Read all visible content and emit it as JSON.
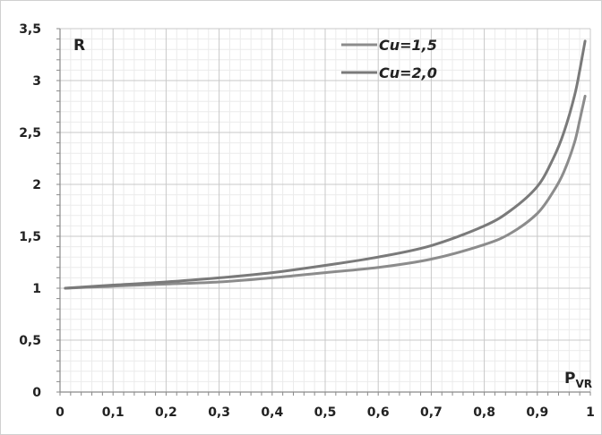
{
  "chart_data": {
    "type": "line",
    "ylabel": "R",
    "xlabel": {
      "main": "P",
      "sub": "VR"
    },
    "xlim": [
      0,
      1
    ],
    "ylim": [
      0,
      3.5
    ],
    "xticks": [
      {
        "v": 0,
        "label": "0"
      },
      {
        "v": 0.1,
        "label": "0,1"
      },
      {
        "v": 0.2,
        "label": "0,2"
      },
      {
        "v": 0.3,
        "label": "0,3"
      },
      {
        "v": 0.4,
        "label": "0,4"
      },
      {
        "v": 0.5,
        "label": "0,5"
      },
      {
        "v": 0.6,
        "label": "0,6"
      },
      {
        "v": 0.7,
        "label": "0,7"
      },
      {
        "v": 0.8,
        "label": "0,8"
      },
      {
        "v": 0.9,
        "label": "0,9"
      },
      {
        "v": 1,
        "label": "1"
      }
    ],
    "yticks": [
      {
        "v": 0,
        "label": "0"
      },
      {
        "v": 0.5,
        "label": "0,5"
      },
      {
        "v": 1,
        "label": "1"
      },
      {
        "v": 1.5,
        "label": "1,5"
      },
      {
        "v": 2,
        "label": "2"
      },
      {
        "v": 2.5,
        "label": "2,5"
      },
      {
        "v": 3,
        "label": "3"
      },
      {
        "v": 3.5,
        "label": "3,5"
      }
    ],
    "grid": true,
    "legend": "top-right",
    "series": [
      {
        "name": "Cu=1,5",
        "color": "#8c8c8c",
        "x": [
          0.01,
          0.1,
          0.2,
          0.3,
          0.4,
          0.5,
          0.6,
          0.7,
          0.8,
          0.85,
          0.9,
          0.93,
          0.95,
          0.97,
          0.98,
          0.99
        ],
        "y": [
          1.0,
          1.02,
          1.04,
          1.06,
          1.1,
          1.15,
          1.2,
          1.28,
          1.42,
          1.53,
          1.72,
          1.93,
          2.12,
          2.4,
          2.62,
          2.85
        ]
      },
      {
        "name": "Cu=2,0",
        "color": "#7a7a7a",
        "x": [
          0.01,
          0.1,
          0.2,
          0.3,
          0.4,
          0.5,
          0.6,
          0.7,
          0.8,
          0.85,
          0.9,
          0.93,
          0.95,
          0.97,
          0.98,
          0.99
        ],
        "y": [
          1.0,
          1.03,
          1.06,
          1.1,
          1.15,
          1.22,
          1.3,
          1.41,
          1.6,
          1.75,
          1.98,
          2.25,
          2.5,
          2.85,
          3.1,
          3.38
        ]
      }
    ]
  }
}
